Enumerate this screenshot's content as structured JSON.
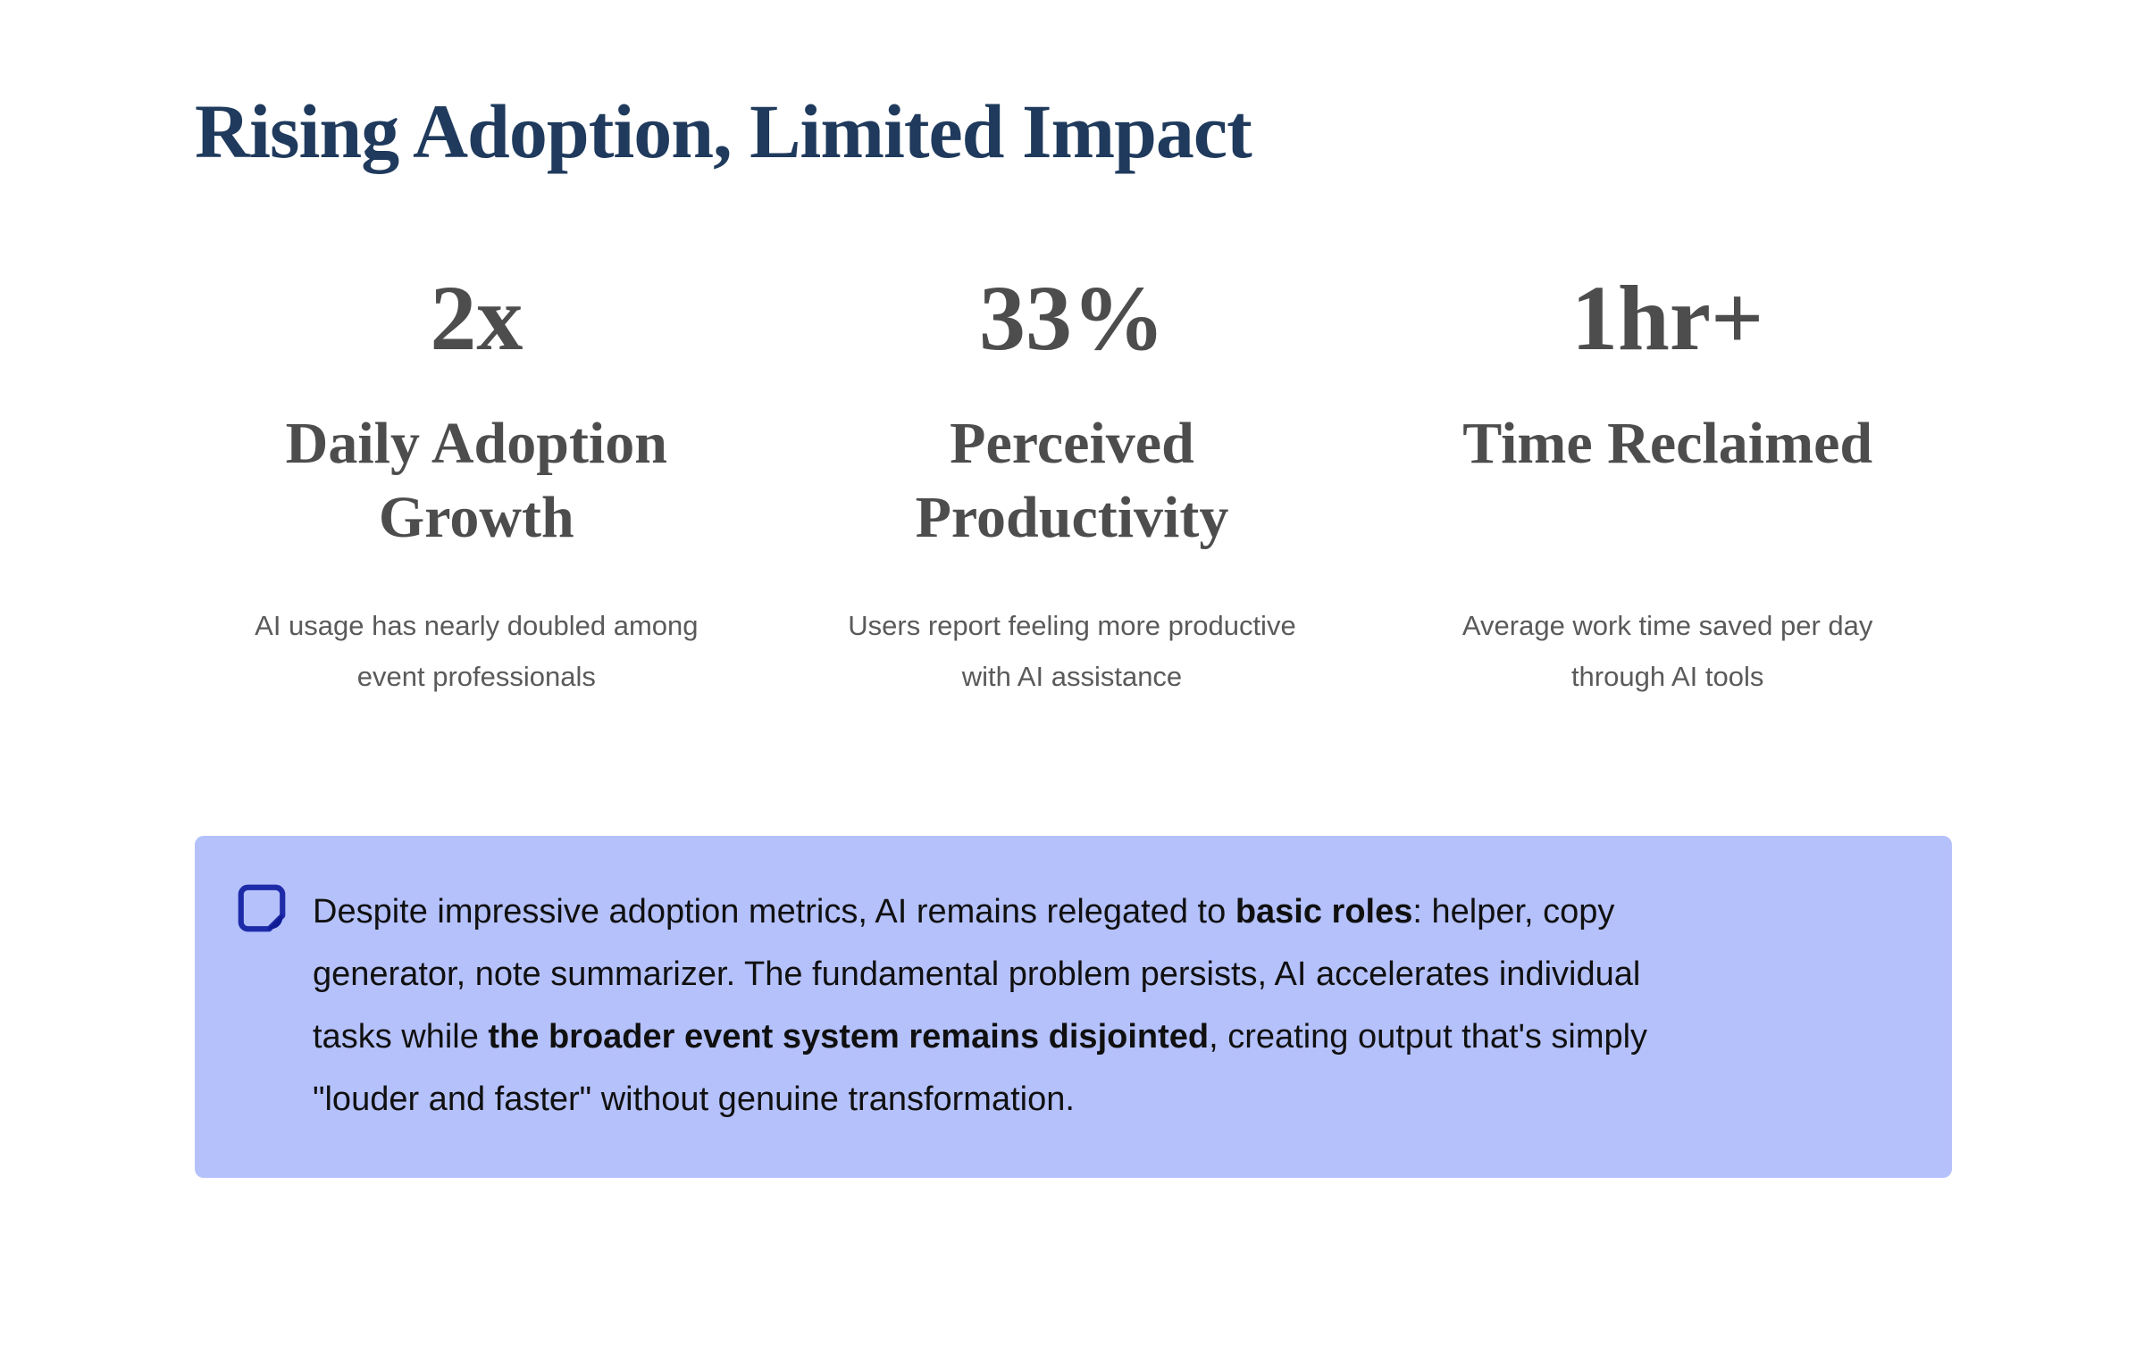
{
  "page": {
    "title": "Rising Adoption, Limited Impact"
  },
  "colors": {
    "title_text": "#1f3a5c",
    "stat_text": "#4d4d4d",
    "description_text": "#5a5a5a",
    "callout_background": "#b5c1fb",
    "callout_text": "#101010",
    "note_icon_stroke": "#1e2ba8",
    "note_icon_fill": "#0e1b95"
  },
  "stats": [
    {
      "value": "2x",
      "label": "Daily Adoption\nGrowth",
      "description": "AI usage has nearly doubled among\nevent professionals"
    },
    {
      "value": "33%",
      "label": "Perceived\nProductivity",
      "description": "Users report feeling more productive\nwith AI assistance"
    },
    {
      "value": "1hr+",
      "label": "Time Reclaimed",
      "description": "Average work time saved per day\nthrough AI tools"
    }
  ],
  "callout": {
    "icon": "note-icon",
    "segments": [
      {
        "text": "Despite impressive adoption metrics, AI remains relegated to ",
        "bold": false
      },
      {
        "text": "basic roles",
        "bold": true
      },
      {
        "text": ": helper, copy\ngenerator, note summarizer. The fundamental problem persists, AI accelerates individual\ntasks while ",
        "bold": false
      },
      {
        "text": "the broader event system remains disjointed",
        "bold": true
      },
      {
        "text": ", creating output that's simply\n\"louder and faster\" without genuine transformation.",
        "bold": false
      }
    ]
  }
}
